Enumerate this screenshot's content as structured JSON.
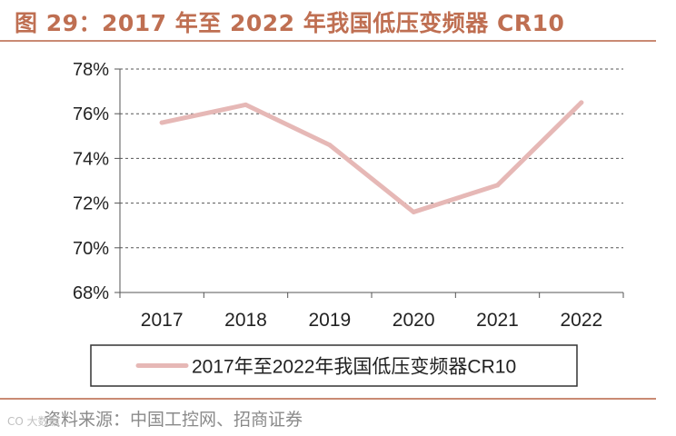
{
  "figure": {
    "title": "图 29：2017 年至 2022 年我国低压变频器 CR10",
    "source": "资料来源：中国工控网、招商证券",
    "watermark": "CO 大数据"
  },
  "colors": {
    "title": "#bf6f52",
    "line": "#e6b8b6",
    "rule": "#c98a73",
    "grid": "#555555",
    "text": "#222222"
  },
  "chart_data": {
    "type": "line",
    "title": "",
    "categories": [
      "2017",
      "2018",
      "2019",
      "2020",
      "2021",
      "2022"
    ],
    "series": [
      {
        "name": "2017年至2022年我国低压变频器CR10",
        "values": [
          75.6,
          76.4,
          74.6,
          71.6,
          72.8,
          76.5
        ]
      }
    ],
    "ylim": [
      68,
      78
    ],
    "yticks": [
      "68%",
      "70%",
      "72%",
      "74%",
      "76%",
      "78%"
    ],
    "ytick_values": [
      68,
      70,
      72,
      74,
      76,
      78
    ],
    "xlabel": "",
    "ylabel": "",
    "grid": true,
    "legend_position": "bottom"
  }
}
